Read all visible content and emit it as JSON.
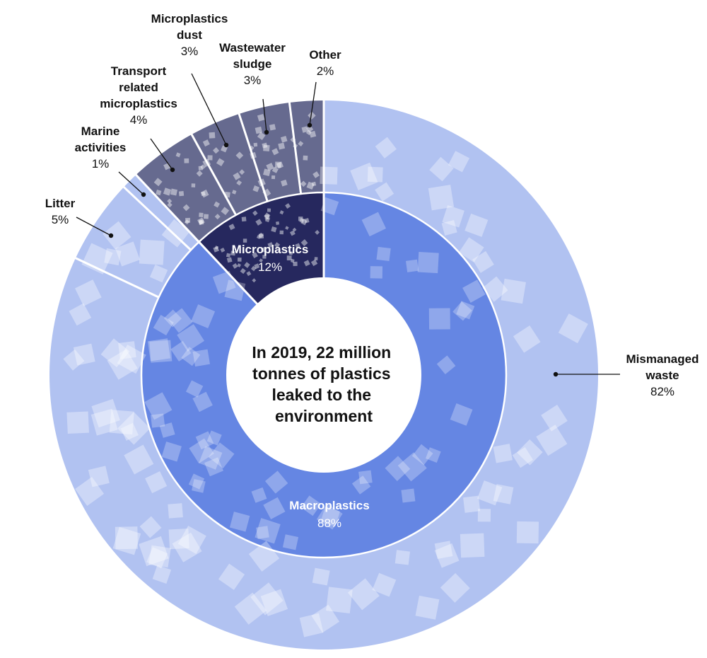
{
  "chart_data": {
    "type": "pie",
    "subtype": "nested-donut",
    "center_text": [
      "In 2019, 22 million",
      "tonnes of plastics",
      "leaked to the",
      "environment"
    ],
    "inner_ring": [
      {
        "name": "Macroplastics",
        "value": 88,
        "label": "88%",
        "color": "#6586e3"
      },
      {
        "name": "Microplastics",
        "value": 12,
        "label": "12%",
        "color": "#26285e"
      }
    ],
    "outer_ring": [
      {
        "name_lines": [
          "Mismanaged",
          "waste"
        ],
        "value": 82,
        "label": "82%",
        "color": "#b1c2f1",
        "parent": "Macroplastics"
      },
      {
        "name_lines": [
          "Litter"
        ],
        "value": 5,
        "label": "5%",
        "color": "#b1c2f1",
        "parent": "Macroplastics"
      },
      {
        "name_lines": [
          "Marine",
          "activities"
        ],
        "value": 1,
        "label": "1%",
        "color": "#b1c2f1",
        "parent": "Macroplastics"
      },
      {
        "name_lines": [
          "Transport",
          "related",
          "microplastics"
        ],
        "value": 4,
        "label": "4%",
        "color": "#666a8f",
        "parent": "Microplastics"
      },
      {
        "name_lines": [
          "Microplastics",
          "dust"
        ],
        "value": 3,
        "label": "3%",
        "color": "#666a8f",
        "parent": "Microplastics"
      },
      {
        "name_lines": [
          "Wastewater",
          "sludge"
        ],
        "value": 3,
        "label": "3%",
        "color": "#666a8f",
        "parent": "Microplastics"
      },
      {
        "name_lines": [
          "Other"
        ],
        "value": 2,
        "label": "2%",
        "color": "#666a8f",
        "parent": "Microplastics"
      }
    ],
    "legend": "none",
    "direction": "clockwise-from-top"
  }
}
